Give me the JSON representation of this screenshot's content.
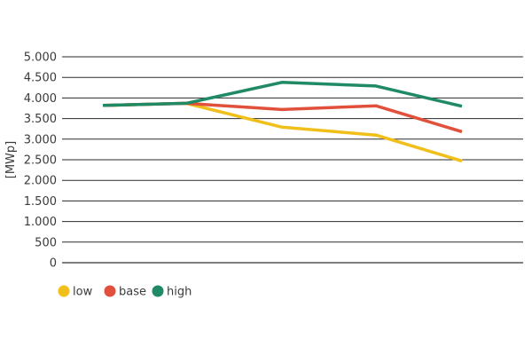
{
  "chart_data": {
    "type": "line",
    "title": "",
    "xlabel": "",
    "ylabel": "[MWp]",
    "ylim": [
      0,
      5000
    ],
    "yticks": [
      0,
      500,
      1000,
      1500,
      2000,
      2500,
      3000,
      3500,
      4000,
      4500,
      5000
    ],
    "ytick_labels": [
      "0",
      "500",
      "1.000",
      "1.500",
      "2.000",
      "2.500",
      "3.000",
      "3.500",
      "4.000",
      "4.500",
      "5.000"
    ],
    "x": [
      1,
      2,
      3,
      4,
      5
    ],
    "grid": "horizontal",
    "legend_position": "bottom-left",
    "series": [
      {
        "name": "low",
        "color": "#f0bf1a",
        "values": [
          3820,
          3870,
          3290,
          3100,
          2470
        ]
      },
      {
        "name": "base",
        "color": "#e0503a",
        "values": [
          3820,
          3870,
          3720,
          3810,
          3180
        ]
      },
      {
        "name": "high",
        "color": "#1f8a63",
        "values": [
          3820,
          3870,
          4380,
          4290,
          3800
        ]
      }
    ]
  }
}
